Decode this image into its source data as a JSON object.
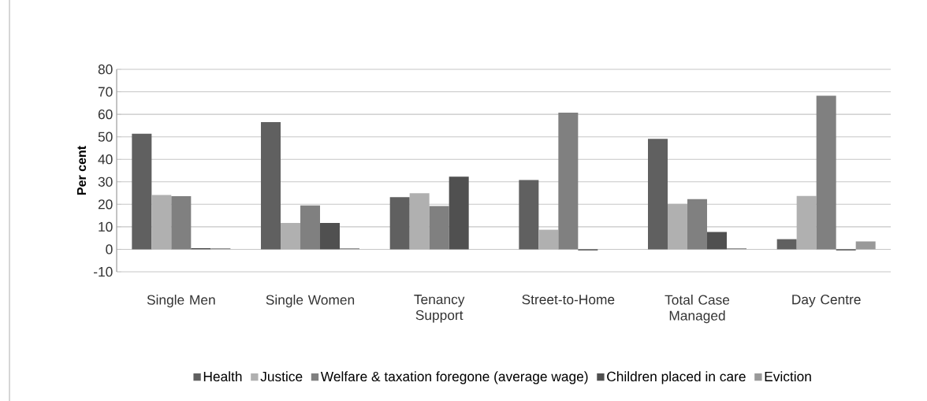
{
  "chart_data": {
    "type": "bar",
    "ylabel": "Per cent",
    "categories": [
      "Single Men",
      "Single Women",
      "Tenancy Support",
      "Street-to-Home",
      "Total Case Managed",
      "Day Centre"
    ],
    "series": [
      {
        "name": "Health",
        "color": "#606060",
        "values": [
          51.4,
          56.5,
          23.2,
          30.8,
          49.1,
          4.5
        ]
      },
      {
        "name": "Justice",
        "color": "#b0b0b0",
        "values": [
          24.1,
          11.7,
          24.9,
          8.7,
          20.2,
          23.7
        ]
      },
      {
        "name": "Welfare & taxation foregone (average wage)",
        "color": "#808080",
        "values": [
          23.6,
          19.5,
          19.2,
          60.7,
          22.3,
          68.3
        ]
      },
      {
        "name": "Children placed in care",
        "color": "#505050",
        "values": [
          0.5,
          11.7,
          32.3,
          -0.5,
          7.7,
          -0.5
        ]
      },
      {
        "name": "Eviction",
        "color": "#999999",
        "values": [
          0.5,
          0.5,
          0,
          0,
          0.5,
          3.5
        ]
      }
    ],
    "ylim": [
      -10,
      80
    ],
    "yticks": [
      -10,
      0,
      10,
      20,
      30,
      40,
      50,
      60,
      70,
      80
    ],
    "grid": "y",
    "legend": "bottom"
  }
}
